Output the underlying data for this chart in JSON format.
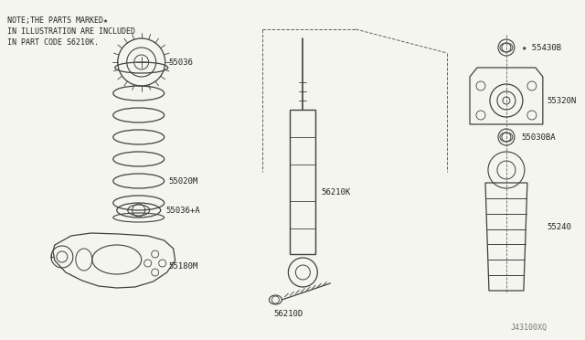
{
  "background_color": "#f5f5f0",
  "line_color": "#404040",
  "text_color": "#222222",
  "title_note": "NOTE;THE PARTS MARKED★",
  "title_line2": "IN ILLUSTRATION ARE INCLUDED",
  "title_line3": "IN PART CODE S6210K.",
  "diagram_code": "J43100XQ",
  "fig_width": 6.4,
  "fig_height": 3.72,
  "dpi": 100
}
